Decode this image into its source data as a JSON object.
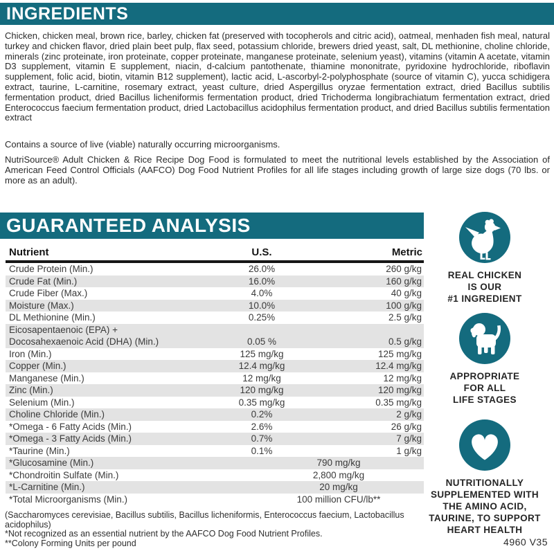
{
  "colors": {
    "teal": "#146b7e",
    "stripe": "#e3e3e3"
  },
  "ingredients": {
    "title": "INGREDIENTS",
    "paragraph": "Chicken, chicken meal, brown rice, barley, chicken fat (preserved with tocopherols and citric acid), oatmeal, menhaden fish meal, natural turkey and chicken flavor, dried plain beet pulp, flax seed, potassium chloride, brewers dried yeast, salt, DL methionine, choline chloride, minerals (zinc proteinate, iron proteinate, copper proteinate, manganese proteinate, selenium yeast), vitamins (vitamin A acetate, vitamin D3 supplement, vitamin E supplement, niacin, d-calcium pantothenate, thiamine mononitrate, pyridoxine hydrochloride, riboflavin supplement, folic acid, biotin, vitamin B12 supplement), lactic acid, L-ascorbyl-2-polyphosphate (source of vitamin C), yucca schidigera extract, taurine, L-carnitine, rosemary extract, yeast culture, dried Aspergillus oryzae fermentation extract, dried Bacillus subtilis fermentation product, dried Bacillus licheniformis fermentation product, dried Trichoderma longibrachiatum fermentation extract, dried Enterococcus faecium fermentation product, dried Lactobacillus acidophilus fermentation product, and dried Bacillus subtilis fermentation extract",
    "note": "Contains a source of live (viable) naturally occurring microorganisms.",
    "aafco_statement": "NutriSource® Adult Chicken & Rice Recipe Dog Food is formulated to meet the nutritional levels established by the Association of American Feed Control Officials (AAFCO) Dog Food Nutrient Profiles for all life stages including growth of large size dogs (70 lbs. or more as an adult)."
  },
  "analysis": {
    "title": "GUARANTEED ANALYSIS",
    "columns": [
      "Nutrient",
      "U.S.",
      "Metric"
    ],
    "rows": [
      {
        "nutrient": "Crude Protein (Min.)",
        "us": "26.0%",
        "metric": "260 g/kg"
      },
      {
        "nutrient": "Crude Fat (Min.)",
        "us": "16.0%",
        "metric": "160 g/kg"
      },
      {
        "nutrient": "Crude Fiber (Max.)",
        "us": "4.0%",
        "metric": "40 g/kg"
      },
      {
        "nutrient": "Moisture (Max.)",
        "us": "10.0%",
        "metric": "100 g/kg"
      },
      {
        "nutrient": "DL Methionine (Min.)",
        "us": "0.25%",
        "metric": "2.5 g/kg"
      },
      {
        "nutrient": "Eicosapentaenoic (EPA) +\nDocosahexaenoic Acid (DHA) (Min.)",
        "us": "0.05 %",
        "metric": "0.5 g/kg"
      },
      {
        "nutrient": "Iron (Min.)",
        "us": "125 mg/kg",
        "metric": "125 mg/kg"
      },
      {
        "nutrient": "Copper (Min.)",
        "us": "12.4 mg/kg",
        "metric": "12.4 mg/kg"
      },
      {
        "nutrient": "Manganese (Min.)",
        "us": "12 mg/kg",
        "metric": "12 mg/kg"
      },
      {
        "nutrient": "Zinc (Min.)",
        "us": "120 mg/kg",
        "metric": "120 mg/kg"
      },
      {
        "nutrient": "Selenium (Min.)",
        "us": "0.35 mg/kg",
        "metric": "0.35 mg/kg"
      },
      {
        "nutrient": "Choline Chloride (Min.)",
        "us": "0.2%",
        "metric": "2 g/kg"
      },
      {
        "nutrient": "*Omega - 6 Fatty Acids (Min.)",
        "us": "2.6%",
        "metric": "26 g/kg"
      },
      {
        "nutrient": "*Omega - 3 Fatty Acids (Min.)",
        "us": "0.7%",
        "metric": "7 g/kg"
      },
      {
        "nutrient": "*Taurine (Min.)",
        "us": "0.1%",
        "metric": "1 g/kg"
      },
      {
        "nutrient": "*Glucosamine (Min.)",
        "span": "790 mg/kg"
      },
      {
        "nutrient": "*Chondroitin Sulfate (Min.)",
        "span": "2,800 mg/kg"
      },
      {
        "nutrient": "*L-Carnitine (Min.)",
        "span": "20 mg/kg"
      },
      {
        "nutrient": "*Total Microorganisms (Min.)",
        "span": "100 million CFU/lb**"
      }
    ],
    "footnotes": [
      "(Saccharomyces cerevisiae, Bacillus subtilis, Bacillus licheniformis, Enterococcus faecium, Lactobacillus acidophilus)",
      "*Not recognized as an essential nutrient by the AAFCO Dog Food Nutrient Profiles.",
      "**Colony Forming Units per pound"
    ],
    "product_code": "4960 V35"
  },
  "badges": [
    {
      "icon": "chicken-icon",
      "caption": "REAL CHICKEN\nIS OUR\n#1 INGREDIENT"
    },
    {
      "icon": "puppy-icon",
      "caption": "APPROPRIATE\nFOR ALL\nLIFE STAGES"
    },
    {
      "icon": "heart-icon",
      "caption": "NUTRITIONALLY\nSUPPLEMENTED WITH\nTHE AMINO ACID,\nTAURINE, TO SUPPORT\nHEART HEALTH"
    }
  ]
}
